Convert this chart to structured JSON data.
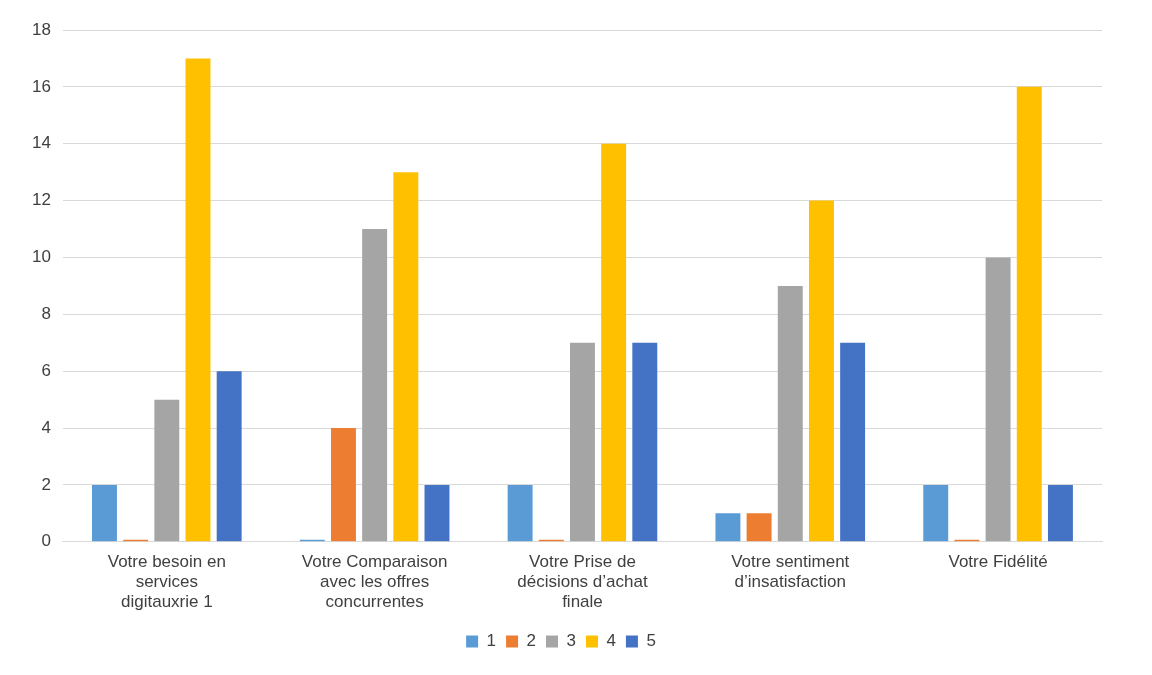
{
  "chart_data": {
    "type": "bar",
    "categories": [
      "Votre besoin en services digitauxrie 1",
      "Votre Comparaison avec les offres concurrentes",
      "Votre Prise de décisions d’achat finale",
      "Votre sentiment d’insatisfaction",
      "Votre Fidélité"
    ],
    "series": [
      {
        "name": "1",
        "color": "#5b9bd5",
        "values": [
          2,
          0,
          2,
          1,
          2
        ]
      },
      {
        "name": "2",
        "color": "#ed7d31",
        "values": [
          0,
          4,
          0,
          1,
          0
        ]
      },
      {
        "name": "3",
        "color": "#a5a5a5",
        "values": [
          5,
          11,
          7,
          9,
          10
        ]
      },
      {
        "name": "4",
        "color": "#ffc000",
        "values": [
          17,
          13,
          14,
          12,
          16
        ]
      },
      {
        "name": "5",
        "color": "#4472c4",
        "values": [
          6,
          2,
          7,
          7,
          2
        ]
      }
    ],
    "ylim": [
      0,
      18
    ],
    "yticks": [
      0,
      2,
      4,
      6,
      8,
      10,
      12,
      14,
      16,
      18
    ],
    "grid": "y",
    "legend": "bottom"
  }
}
